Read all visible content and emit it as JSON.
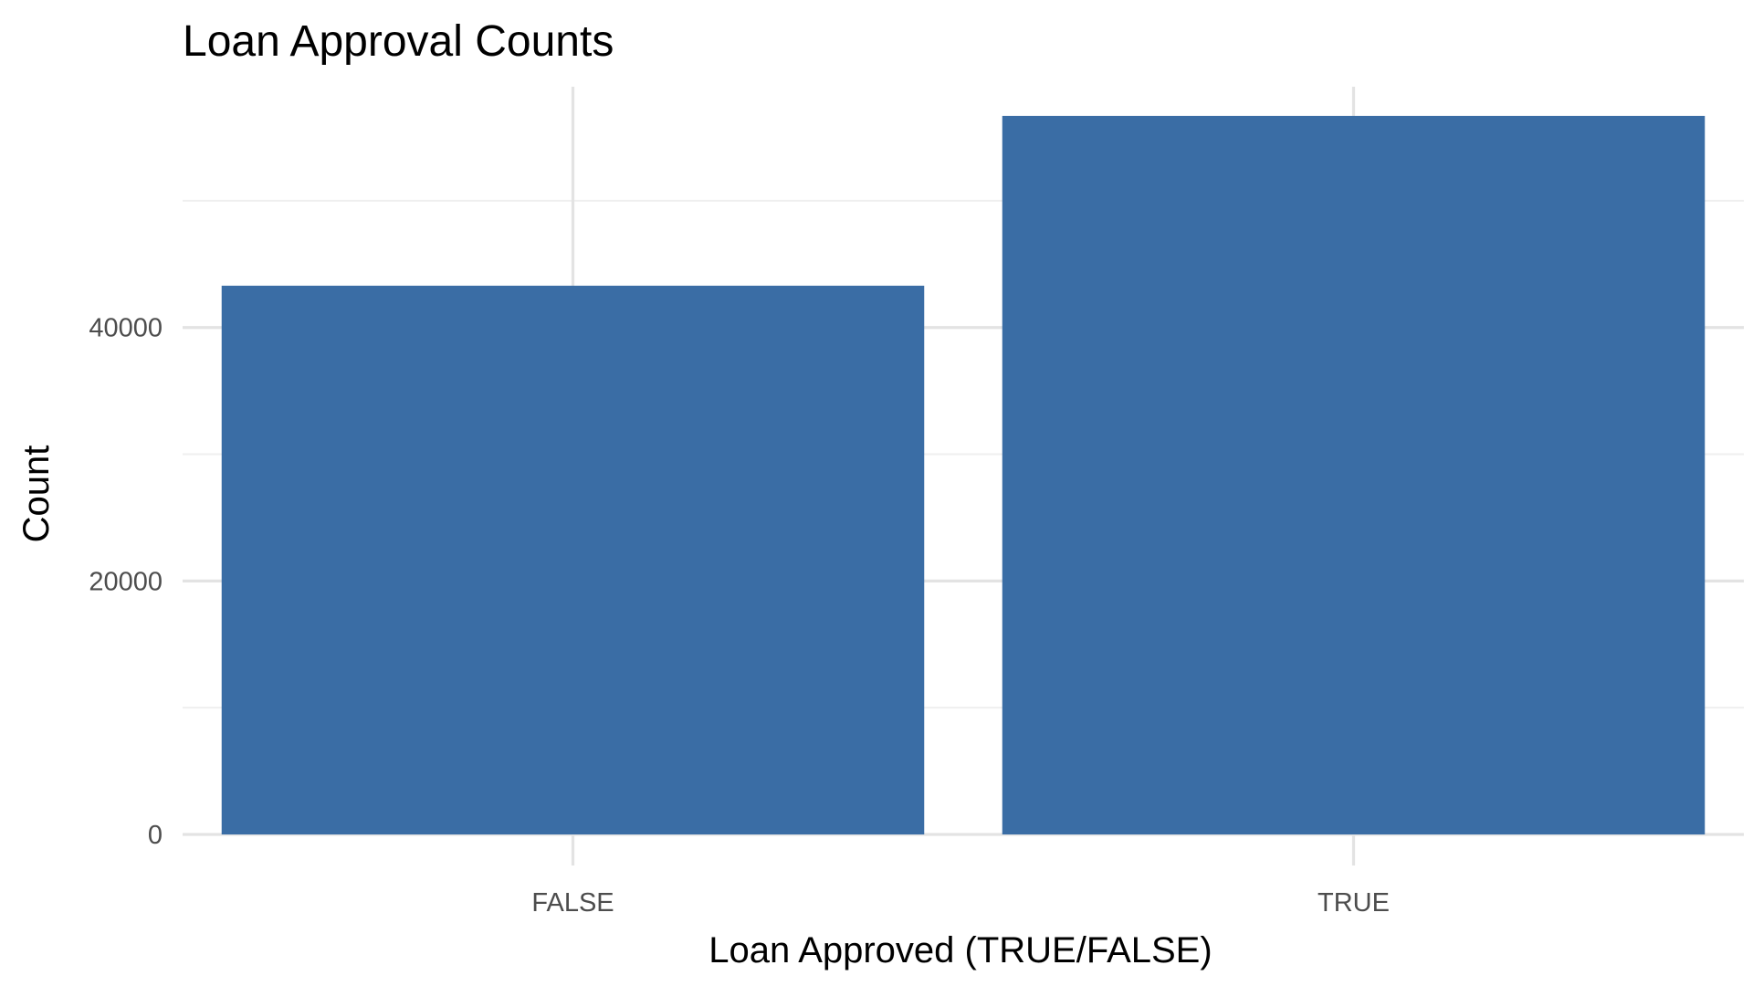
{
  "chart_data": {
    "type": "bar",
    "title": "Loan Approval Counts",
    "xlabel": "Loan Approved (TRUE/FALSE)",
    "ylabel": "Count",
    "categories": [
      "FALSE",
      "TRUE"
    ],
    "values": [
      43300,
      56700
    ],
    "ylim": [
      0,
      59000
    ],
    "yticks": [
      0,
      20000,
      40000
    ],
    "yminor": [
      10000,
      30000,
      50000
    ],
    "grid": true,
    "legend": "none",
    "bar_color": "#3A6DA5"
  }
}
